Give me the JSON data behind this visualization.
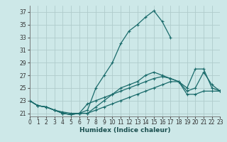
{
  "xlabel": "Humidex (Indice chaleur)",
  "background_color": "#cde8e8",
  "grid_color": "#b0cccc",
  "line_color": "#1a6b6b",
  "xlim": [
    0,
    23
  ],
  "ylim": [
    20.5,
    38.0
  ],
  "xticks": [
    0,
    1,
    2,
    3,
    4,
    5,
    6,
    7,
    8,
    9,
    10,
    11,
    12,
    13,
    14,
    15,
    16,
    17,
    18,
    19,
    20,
    21,
    22,
    23
  ],
  "yticks": [
    21,
    23,
    25,
    27,
    29,
    31,
    33,
    35,
    37
  ],
  "series": [
    [
      23.0,
      22.2,
      22.0,
      21.5,
      21.0,
      20.8,
      21.0,
      21.5,
      25.0,
      27.0,
      29.0,
      32.0,
      34.0,
      35.0,
      36.2,
      37.2,
      35.5,
      33.0,
      null,
      null,
      null,
      null,
      null,
      null
    ],
    [
      23.0,
      22.2,
      22.0,
      21.5,
      21.2,
      21.0,
      21.0,
      21.0,
      22.0,
      23.0,
      24.0,
      25.0,
      25.5,
      26.0,
      27.0,
      27.5,
      27.0,
      26.5,
      26.0,
      25.0,
      28.0,
      28.0,
      25.0,
      24.5
    ],
    [
      23.0,
      22.2,
      22.0,
      21.5,
      21.0,
      20.8,
      21.0,
      22.5,
      23.0,
      23.5,
      24.0,
      24.5,
      25.0,
      25.5,
      26.0,
      26.5,
      26.8,
      26.5,
      26.0,
      24.5,
      25.0,
      27.5,
      25.5,
      24.5
    ],
    [
      23.0,
      22.2,
      22.0,
      21.5,
      21.0,
      20.8,
      21.0,
      21.0,
      21.5,
      22.0,
      22.5,
      23.0,
      23.5,
      24.0,
      24.5,
      25.0,
      25.5,
      26.0,
      26.0,
      24.0,
      24.0,
      24.5,
      24.5,
      24.5
    ]
  ]
}
